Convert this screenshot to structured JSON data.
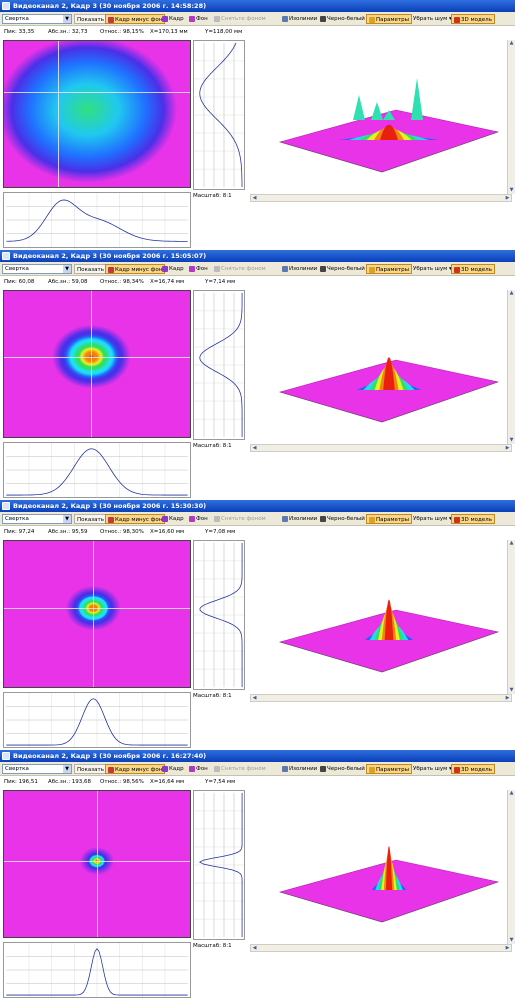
{
  "toolbar": {
    "mode_select": "Свертка",
    "show_label": "Показать",
    "frame_minus_bg": "Кадр минус фон",
    "frame": "Кадр",
    "background": "Фон",
    "clear_bg": "Снятьте фоном",
    "isolines": "Изолинии",
    "bw": "Черно-белый",
    "params": "Параметры",
    "remove_noise": "Убрать шум",
    "model_3d": "3D модель"
  },
  "colors": {
    "titlebar": "#1a52c8",
    "toolbar_bg": "#ece9d8",
    "active_button": "#f8d68a",
    "background_magenta": "#e833e8",
    "peak_red": "#e81a10"
  },
  "icons": [
    "window-icon",
    "frame-minus-bg-icon",
    "frame-icon",
    "background-icon",
    "clear-bg-icon",
    "isolines-icon",
    "bw-icon",
    "params-icon",
    "model-3d-icon"
  ],
  "panels": [
    {
      "title": "Видеоканал 2, Кадр 3 (30 ноября 2006 г. 14:58:28)",
      "peak": "Пик: 33,35",
      "abs": "Абс.зн.: 32,73",
      "rel": "Относ.: 98,15%",
      "x": "X=170,13 мм",
      "y": "Y=118,00 мм",
      "scale": "Масштаб: 8:1",
      "beam_radius": 0.38,
      "spread": 1.0,
      "cross_x": 0.29,
      "cross_y": 0.35
    },
    {
      "title": "Видеоканал 2, Кадр 3 (30 ноября 2006 г. 15:05:07)",
      "peak": "Пик: 60,08",
      "abs": "Абс.зн.: 59,08",
      "rel": "Относ.: 98,34%",
      "x": "X=16,74 мм",
      "y": "Y=7,14 мм",
      "scale": "Масштаб: 8:1",
      "beam_radius": 0.22,
      "spread": 0.55,
      "cross_x": 0.47,
      "cross_y": 0.45
    },
    {
      "title": "Видеоканал 2, Кадр 3 (30 ноября 2006 г. 15:30:30)",
      "peak": "Пик: 97,24",
      "abs": "Абс.зн.: 95,59",
      "rel": "Относ.: 98,30%",
      "x": "X=16,60 мм",
      "y": "Y=7,08 мм",
      "scale": "Масштаб: 8:1",
      "beam_radius": 0.14,
      "spread": 0.35,
      "cross_x": 0.48,
      "cross_y": 0.46
    },
    {
      "title": "Видеоканал 2, Кадр 3 (30 ноября 2006 г. 16:27:40)",
      "peak": "Пик: 196,51",
      "abs": "Абс.зн.: 193,68",
      "rel": "Относ.: 98,56%",
      "x": "X=16,64 мм",
      "y": "Y=7,54 мм",
      "scale": "Масштаб: 8:1",
      "beam_radius": 0.07,
      "spread": 0.18,
      "cross_x": 0.5,
      "cross_y": 0.48
    }
  ]
}
